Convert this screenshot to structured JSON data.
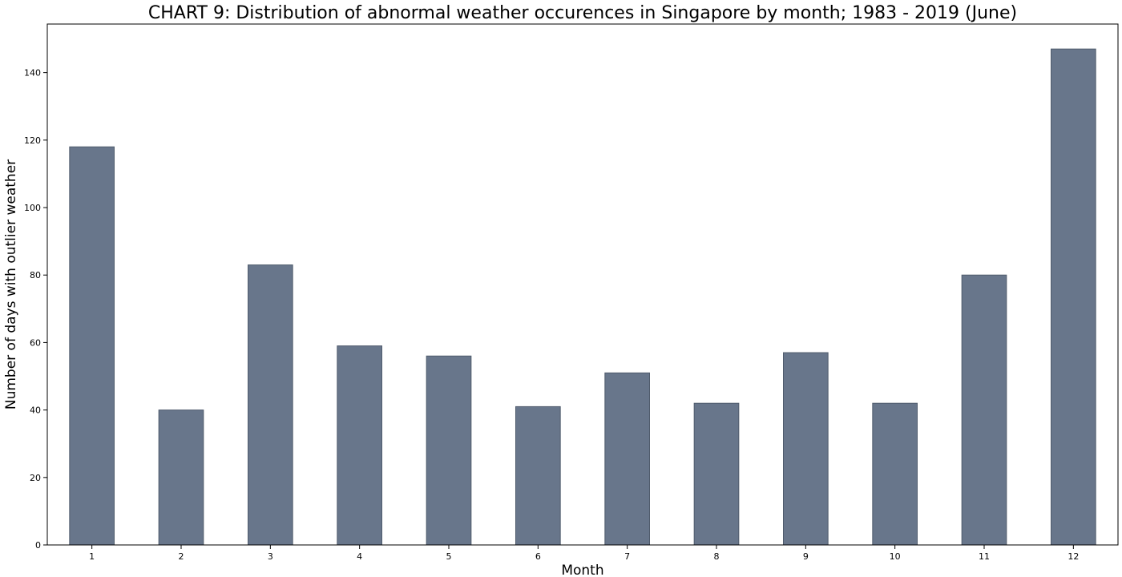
{
  "chart_data": {
    "type": "bar",
    "title": "CHART 9: Distribution of abnormal weather occurences in Singapore by month; 1983 - 2019 (June)",
    "xlabel": "Month",
    "ylabel": "Number of days with outlier weather",
    "categories": [
      "1",
      "2",
      "3",
      "4",
      "5",
      "6",
      "7",
      "8",
      "9",
      "10",
      "11",
      "12"
    ],
    "values": [
      118,
      40,
      83,
      59,
      56,
      41,
      51,
      42,
      57,
      42,
      80,
      147
    ],
    "ylim": [
      0,
      154.4
    ],
    "yticks": [
      0,
      20,
      40,
      60,
      80,
      100,
      120,
      140
    ],
    "bar_color": "#68768b",
    "bar_edge_color": "#4f5b6c",
    "grid": false,
    "legend": "none"
  }
}
